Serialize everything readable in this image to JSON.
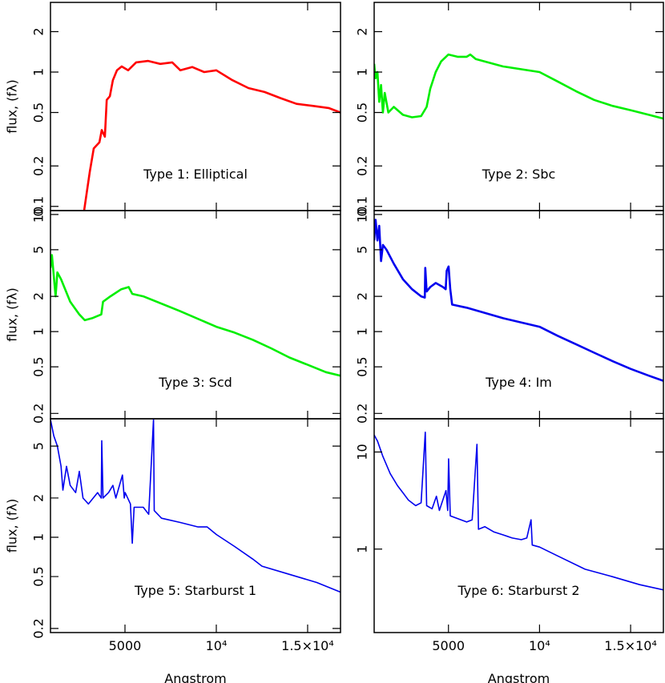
{
  "chart_data": [
    {
      "type": "line",
      "annotation": "Type 1: Elliptical",
      "ylabel": "flux, (fλ)",
      "color": "#ff0000",
      "log_y": true,
      "xlim": [
        921,
        16800
      ],
      "ylim": [
        0.093,
        3.3
      ],
      "xticks": [
        5000,
        {
          "value": 10000,
          "label": "10⁴"
        },
        {
          "value": 15000,
          "label": "1.5×10⁴"
        }
      ],
      "yticks": [
        0.1,
        0.2,
        0.5,
        1,
        2
      ],
      "x": [
        2763,
        3070,
        3290,
        3600,
        3730,
        3900,
        4000,
        4170,
        4340,
        4560,
        4820,
        5170,
        5610,
        6270,
        6930,
        7590,
        8030,
        8680,
        9340,
        10000,
        10880,
        11760,
        12640,
        13510,
        14390,
        15270,
        16150,
        16800
      ],
      "values": [
        0.093,
        0.18,
        0.27,
        0.3,
        0.37,
        0.33,
        0.62,
        0.66,
        0.87,
        1.03,
        1.1,
        1.03,
        1.18,
        1.21,
        1.15,
        1.18,
        1.03,
        1.09,
        1.0,
        1.03,
        0.87,
        0.76,
        0.71,
        0.64,
        0.58,
        0.56,
        0.54,
        0.5
      ]
    },
    {
      "type": "line",
      "annotation": "Type 2: Sbc",
      "color": "#00ee00",
      "log_y": true,
      "xlim": [
        921,
        16800
      ],
      "ylim": [
        0.093,
        3.3
      ],
      "xticks": [
        5000,
        {
          "value": 10000,
          "label": "10⁴"
        },
        {
          "value": 15000,
          "label": "1.5×10⁴"
        }
      ],
      "yticks": [
        0.1,
        0.2,
        0.5,
        1,
        2
      ],
      "x": [
        921,
        1000,
        1100,
        1200,
        1300,
        1400,
        1500,
        1700,
        2000,
        2500,
        3000,
        3500,
        3800,
        4000,
        4300,
        4600,
        5000,
        5500,
        6000,
        6200,
        6500,
        8000,
        10000,
        11000,
        12000,
        13000,
        14000,
        15000,
        16000,
        16800
      ],
      "values": [
        1.15,
        0.9,
        1.0,
        0.6,
        0.8,
        0.5,
        0.7,
        0.5,
        0.55,
        0.48,
        0.46,
        0.47,
        0.55,
        0.75,
        1.0,
        1.2,
        1.35,
        1.3,
        1.3,
        1.35,
        1.25,
        1.1,
        1.0,
        0.85,
        0.72,
        0.62,
        0.56,
        0.52,
        0.48,
        0.45
      ]
    },
    {
      "type": "line",
      "annotation": "Type 3: Scd",
      "ylabel": "flux, (fλ)",
      "color": "#00ee00",
      "log_y": true,
      "xlim": [
        921,
        16800
      ],
      "ylim": [
        0.18,
        10.8
      ],
      "xticks": [
        5000,
        {
          "value": 10000,
          "label": "10⁴"
        },
        {
          "value": 15000,
          "label": "1.5×10⁴"
        }
      ],
      "yticks": [
        0.2,
        0.5,
        1,
        2,
        5,
        10
      ],
      "x": [
        921,
        1000,
        1100,
        1200,
        1300,
        1500,
        2000,
        2500,
        2800,
        3200,
        3700,
        3800,
        4200,
        4800,
        5200,
        5400,
        6000,
        8000,
        10000,
        11000,
        12000,
        13000,
        14000,
        15000,
        16000,
        16800
      ],
      "values": [
        3.5,
        4.5,
        3.0,
        2.0,
        3.2,
        2.8,
        1.8,
        1.4,
        1.25,
        1.3,
        1.4,
        1.8,
        2.0,
        2.3,
        2.4,
        2.1,
        2.0,
        1.5,
        1.1,
        0.98,
        0.85,
        0.72,
        0.6,
        0.52,
        0.45,
        0.42
      ]
    },
    {
      "type": "line",
      "annotation": "Type 4: Im",
      "color": "#0000ee",
      "log_y": true,
      "xlim": [
        921,
        16800
      ],
      "ylim": [
        0.18,
        10.8
      ],
      "xticks": [
        5000,
        {
          "value": 10000,
          "label": "10⁴"
        },
        {
          "value": 15000,
          "label": "1.5×10⁴"
        }
      ],
      "yticks": [
        0.2,
        0.5,
        1,
        2,
        5,
        10
      ],
      "x": [
        921,
        1000,
        1100,
        1200,
        1300,
        1400,
        1600,
        2000,
        2500,
        3000,
        3500,
        3700,
        3727,
        3800,
        4000,
        4300,
        4700,
        4850,
        4900,
        5007,
        5100,
        5200,
        6000,
        8000,
        10000,
        11000,
        12000,
        13000,
        14000,
        15000,
        16000,
        16800
      ],
      "values": [
        6,
        9,
        6,
        8,
        4,
        5.5,
        5,
        3.8,
        2.8,
        2.3,
        2.0,
        1.95,
        3.5,
        2.2,
        2.4,
        2.6,
        2.4,
        2.3,
        3.3,
        3.6,
        2.3,
        1.7,
        1.6,
        1.3,
        1.1,
        0.92,
        0.78,
        0.66,
        0.56,
        0.48,
        0.42,
        0.38
      ]
    },
    {
      "type": "line",
      "annotation": "Type 5: Starburst 1",
      "ylabel": "flux, (fλ)",
      "xlabel": "Angstrom",
      "color": "#0000ee",
      "log_y": true,
      "xlim": [
        921,
        16800
      ],
      "ylim": [
        0.186,
        8.1
      ],
      "xticks": [
        5000,
        {
          "value": 10000,
          "label": "10⁴"
        },
        {
          "value": 15000,
          "label": "1.5×10⁴"
        }
      ],
      "yticks": [
        0.2,
        0.5,
        1,
        2,
        5
      ],
      "x": [
        921,
        1100,
        1300,
        1500,
        1600,
        1800,
        2000,
        2300,
        2500,
        2700,
        3000,
        3500,
        3700,
        3727,
        3800,
        4100,
        4340,
        4500,
        4861,
        4959,
        5007,
        5300,
        5400,
        5500,
        6000,
        6300,
        6563,
        6600,
        7000,
        8000,
        9000,
        9500,
        10000,
        11000,
        12000,
        12500,
        14000,
        15500,
        16800
      ],
      "values": [
        8,
        6,
        5,
        3.5,
        2.3,
        3.5,
        2.5,
        2.2,
        3.2,
        2.0,
        1.8,
        2.2,
        2.0,
        5.5,
        2.0,
        2.2,
        2.5,
        2.0,
        3.0,
        2.0,
        2.2,
        1.8,
        0.9,
        1.7,
        1.7,
        1.5,
        8,
        1.6,
        1.4,
        1.3,
        1.2,
        1.2,
        1.05,
        0.85,
        0.68,
        0.6,
        0.52,
        0.45,
        0.38
      ]
    },
    {
      "type": "line",
      "annotation": "Type 6: Starburst 2",
      "xlabel": "Angstrom",
      "color": "#0000ee",
      "log_y": true,
      "xlim": [
        921,
        16800
      ],
      "ylim": [
        0.138,
        22
      ],
      "xticks": [
        5000,
        {
          "value": 10000,
          "label": "10⁴"
        },
        {
          "value": 15000,
          "label": "1.5×10⁴"
        }
      ],
      "yticks": [
        1,
        10
      ],
      "x": [
        921,
        1100,
        1400,
        1800,
        2200,
        2500,
        2800,
        3200,
        3500,
        3727,
        3800,
        4100,
        4340,
        4500,
        4861,
        4959,
        5007,
        5100,
        6000,
        6300,
        6563,
        6650,
        7000,
        7500,
        8000,
        8500,
        9000,
        9300,
        9532,
        9600,
        10000,
        11000,
        12500,
        14000,
        15500,
        16800
      ],
      "values": [
        15,
        13,
        9,
        6,
        4.5,
        3.8,
        3.2,
        2.8,
        3.0,
        16,
        2.8,
        2.6,
        3.5,
        2.5,
        4.0,
        2.5,
        8.5,
        2.2,
        1.9,
        2.0,
        12,
        1.6,
        1.7,
        1.5,
        1.4,
        1.3,
        1.25,
        1.3,
        2.0,
        1.1,
        1.05,
        0.85,
        0.62,
        0.52,
        0.43,
        0.38
      ]
    }
  ]
}
